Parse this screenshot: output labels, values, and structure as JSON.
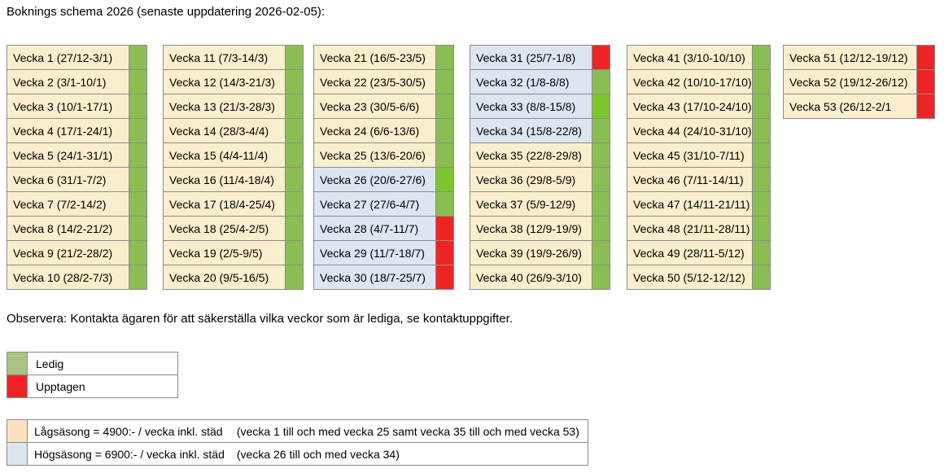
{
  "page": {
    "title": "Boknings schema 2026 (senaste uppdatering 2026-02-05):",
    "note": "Observera: Kontakta ägaren för att säkerställa vilka veckor som är lediga, se kontaktuppgifter."
  },
  "colors": {
    "low_season_bg": "#FBEECD",
    "high_season_bg": "#DCE6F1",
    "free_indicator": "#8BBE52",
    "free_indicator_bright": "#7CC62B",
    "occupied_indicator": "#EE2424",
    "legend_free_swatch": "#A9C484",
    "legend_occupied_swatch": "#EE2424",
    "low_season_swatch": "#FAE3BC",
    "high_season_swatch": "#DCE6F1"
  },
  "weeks_columns": [
    {
      "weeks": [
        {
          "label": "Vecka 1 (27/12-3/1)",
          "season": "low",
          "status": "ledig"
        },
        {
          "label": "Vecka 2 (3/1-10/1)",
          "season": "low",
          "status": "ledig"
        },
        {
          "label": "Vecka 3 (10/1-17/1)",
          "season": "low",
          "status": "ledig"
        },
        {
          "label": "Vecka 4 (17/1-24/1)",
          "season": "low",
          "status": "ledig"
        },
        {
          "label": "Vecka 5 (24/1-31/1)",
          "season": "low",
          "status": "ledig"
        },
        {
          "label": "Vecka 6 (31/1-7/2)",
          "season": "low",
          "status": "ledig"
        },
        {
          "label": "Vecka 7 (7/2-14/2)",
          "season": "low",
          "status": "ledig"
        },
        {
          "label": "Vecka 8 (14/2-21/2)",
          "season": "low",
          "status": "ledig"
        },
        {
          "label": "Vecka 9 (21/2-28/2)",
          "season": "low",
          "status": "ledig"
        },
        {
          "label": "Vecka 10 (28/2-7/3)",
          "season": "low",
          "status": "ledig"
        }
      ]
    },
    {
      "weeks": [
        {
          "label": "Vecka 11 (7/3-14/3)",
          "season": "low",
          "status": "ledig"
        },
        {
          "label": "Vecka 12 (14/3-21/3)",
          "season": "low",
          "status": "ledig"
        },
        {
          "label": "Vecka 13 (21/3-28/3)",
          "season": "low",
          "status": "ledig"
        },
        {
          "label": "Vecka 14 (28/3-4/4)",
          "season": "low",
          "status": "ledig"
        },
        {
          "label": "Vecka 15 (4/4-11/4)",
          "season": "low",
          "status": "ledig"
        },
        {
          "label": "Vecka 16 (11/4-18/4)",
          "season": "low",
          "status": "ledig"
        },
        {
          "label": "Vecka 17 (18/4-25/4)",
          "season": "low",
          "status": "ledig"
        },
        {
          "label": "Vecka 18 (25/4-2/5)",
          "season": "low",
          "status": "ledig"
        },
        {
          "label": "Vecka 19 (2/5-9/5)",
          "season": "low",
          "status": "ledig"
        },
        {
          "label": "Vecka 20 (9/5-16/5)",
          "season": "low",
          "status": "ledig"
        }
      ]
    },
    {
      "weeks": [
        {
          "label": "Vecka 21 (16/5-23/5)",
          "season": "low",
          "status": "ledig"
        },
        {
          "label": "Vecka 22 (23/5-30/5)",
          "season": "low",
          "status": "ledig"
        },
        {
          "label": "Vecka 23 (30/5-6/6)",
          "season": "low",
          "status": "ledig"
        },
        {
          "label": "Vecka 24 (6/6-13/6)",
          "season": "low",
          "status": "ledig"
        },
        {
          "label": "Vecka 25 (13/6-20/6)",
          "season": "low",
          "status": "ledig"
        },
        {
          "label": "Vecka 26 (20/6-27/6)",
          "season": "high",
          "status": "ledig",
          "bright": true
        },
        {
          "label": "Vecka 27 (27/6-4/7)",
          "season": "high",
          "status": "ledig"
        },
        {
          "label": "Vecka 28 (4/7-11/7)",
          "season": "high",
          "status": "upptagen"
        },
        {
          "label": "Vecka 29 (11/7-18/7)",
          "season": "high",
          "status": "upptagen"
        },
        {
          "label": "Vecka 30 (18/7-25/7)",
          "season": "high",
          "status": "upptagen"
        }
      ]
    },
    {
      "weeks": [
        {
          "label": "Vecka 31 (25/7-1/8)",
          "season": "high",
          "status": "upptagen"
        },
        {
          "label": "Vecka 32 (1/8-8/8)",
          "season": "high",
          "status": "ledig"
        },
        {
          "label": "Vecka 33 (8/8-15/8)",
          "season": "high",
          "status": "ledig",
          "bright": true
        },
        {
          "label": "Vecka 34 (15/8-22/8)",
          "season": "high",
          "status": "ledig"
        },
        {
          "label": "Vecka 35 (22/8-29/8)",
          "season": "low",
          "status": "ledig"
        },
        {
          "label": "Vecka 36 (29/8-5/9)",
          "season": "low",
          "status": "ledig"
        },
        {
          "label": "Vecka 37 (5/9-12/9)",
          "season": "low",
          "status": "ledig"
        },
        {
          "label": "Vecka 38 (12/9-19/9)",
          "season": "low",
          "status": "ledig"
        },
        {
          "label": "Vecka 39 (19/9-26/9)",
          "season": "low",
          "status": "ledig"
        },
        {
          "label": "Vecka 40 (26/9-3/10)",
          "season": "low",
          "status": "ledig"
        }
      ]
    },
    {
      "weeks": [
        {
          "label": "Vecka 41 (3/10-10/10)",
          "season": "low",
          "status": "ledig"
        },
        {
          "label": "Vecka 42 (10/10-17/10)",
          "season": "low",
          "status": "ledig"
        },
        {
          "label": "Vecka 43 (17/10-24/10)",
          "season": "low",
          "status": "ledig"
        },
        {
          "label": "Vecka 44 (24/10-31/10)",
          "season": "low",
          "status": "ledig"
        },
        {
          "label": "Vecka 45 (31/10-7/11)",
          "season": "low",
          "status": "ledig"
        },
        {
          "label": "Vecka 46 (7/11-14/11)",
          "season": "low",
          "status": "ledig"
        },
        {
          "label": "Vecka 47 (14/11-21/11)",
          "season": "low",
          "status": "ledig"
        },
        {
          "label": "Vecka 48 (21/11-28/11)",
          "season": "low",
          "status": "ledig"
        },
        {
          "label": "Vecka 49 (28/11-5/12)",
          "season": "low",
          "status": "ledig"
        },
        {
          "label": "Vecka 50 (5/12-12/12)",
          "season": "low",
          "status": "ledig"
        }
      ]
    },
    {
      "weeks": [
        {
          "label": "Vecka 51 (12/12-19/12)",
          "season": "low",
          "status": "upptagen"
        },
        {
          "label": "Vecka 52 (19/12-26/12)",
          "season": "low",
          "status": "upptagen"
        },
        {
          "label": "Vecka 53 (26/12-2/1",
          "season": "low",
          "status": "upptagen"
        }
      ]
    }
  ],
  "status_legend": {
    "items": [
      {
        "label": "Ledig",
        "status": "ledig"
      },
      {
        "label": "Upptagen",
        "status": "upptagen"
      }
    ]
  },
  "price_legend": {
    "rows": [
      {
        "label": "Lågsäsong = 4900:- / vecka inkl. städ",
        "note": "(vecka 1 till och med vecka 25 samt vecka 35 till och med vecka 53)",
        "season": "low"
      },
      {
        "label": "Högsäsong = 6900:- / vecka inkl. städ",
        "note": "(vecka 26 till och med vecka 34)",
        "season": "high"
      }
    ]
  }
}
